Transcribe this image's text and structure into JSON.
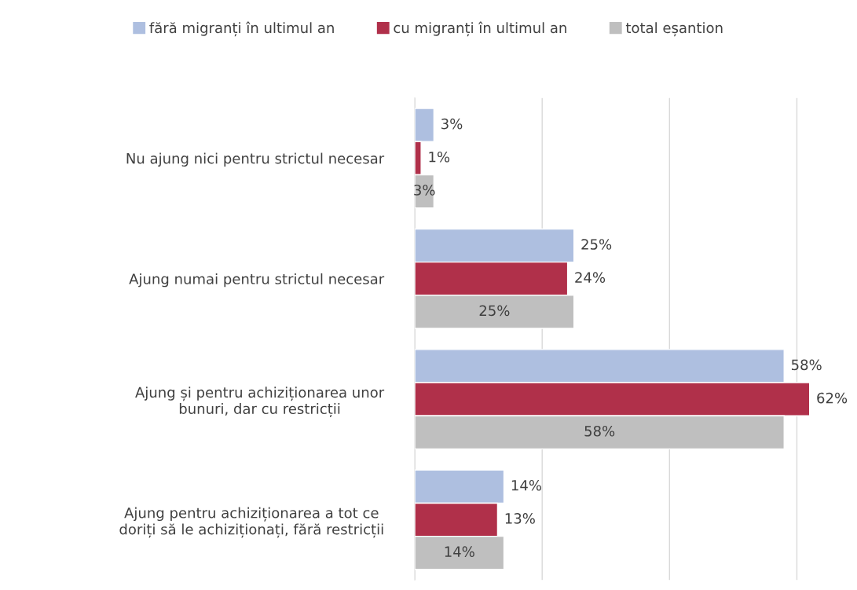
{
  "chart_data": {
    "type": "bar",
    "orientation": "horizontal",
    "categories": [
      "Nu ajung nici pentru strictul necesar",
      "Ajung numai pentru strictul necesar",
      "Ajung și pentru achiziționarea unor\nbunuri, dar cu restricții",
      "Ajung pentru achiziționarea a tot ce\ndoriți să le achiziționați, fără restricții"
    ],
    "series": [
      {
        "name": "fără migranți în ultimul an",
        "color": "#aebfe0",
        "values": [
          3,
          25,
          58,
          14
        ],
        "value_labels": [
          "3%",
          "25%",
          "58%",
          "14%"
        ]
      },
      {
        "name": "cu migranți în ultimul an",
        "color": "#b0304a",
        "values": [
          1,
          24,
          62,
          13
        ],
        "value_labels": [
          "1%",
          "24%",
          "62%",
          "13%"
        ]
      },
      {
        "name": "total eșantion",
        "color": "#bfbfbf",
        "values": [
          3,
          25,
          58,
          14
        ],
        "value_labels": [
          "3%",
          "25%",
          "58%",
          "14%"
        ]
      }
    ],
    "grid": "x",
    "legend": "top",
    "tick_labels": "y"
  }
}
